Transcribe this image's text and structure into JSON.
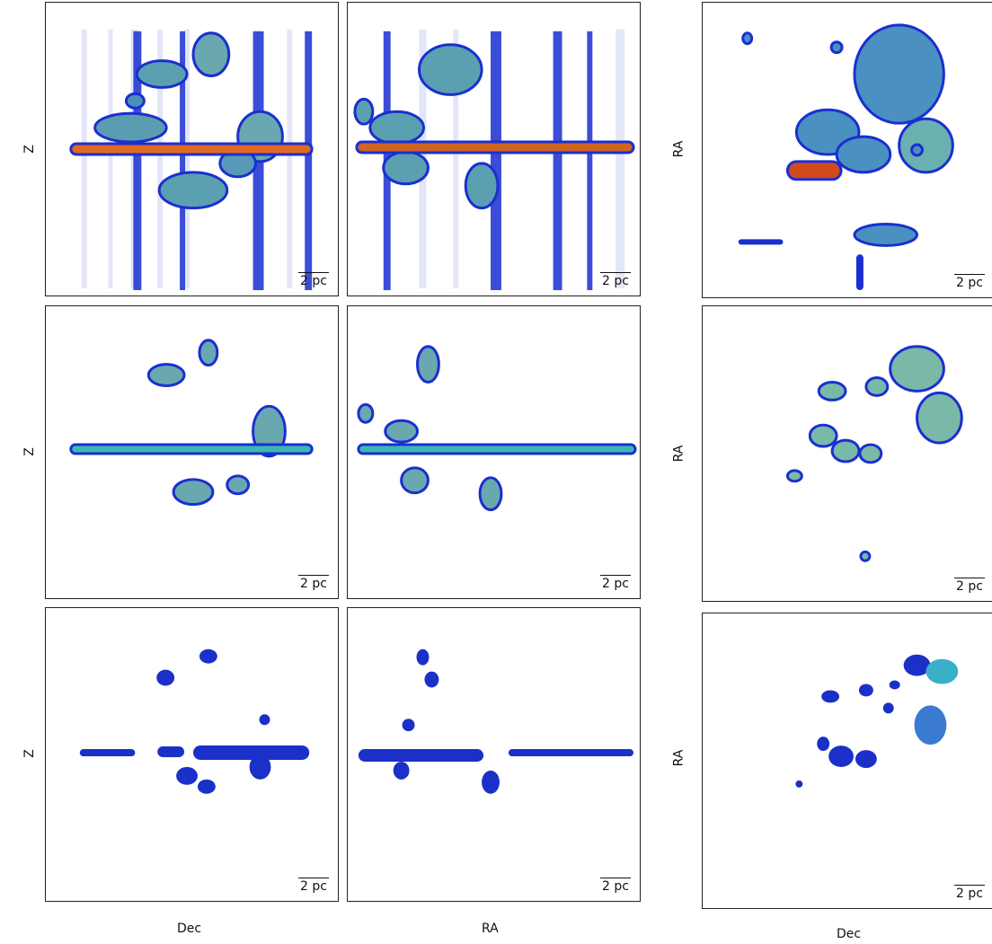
{
  "scale_label": "2 pc",
  "labels": {
    "z": "Z",
    "ra": "RA",
    "dec": "Dec"
  },
  "colors": {
    "low": "#1a2fd0",
    "mid": "#4aa7c0",
    "high": "#e8d040",
    "peak": "#d03018"
  }
}
